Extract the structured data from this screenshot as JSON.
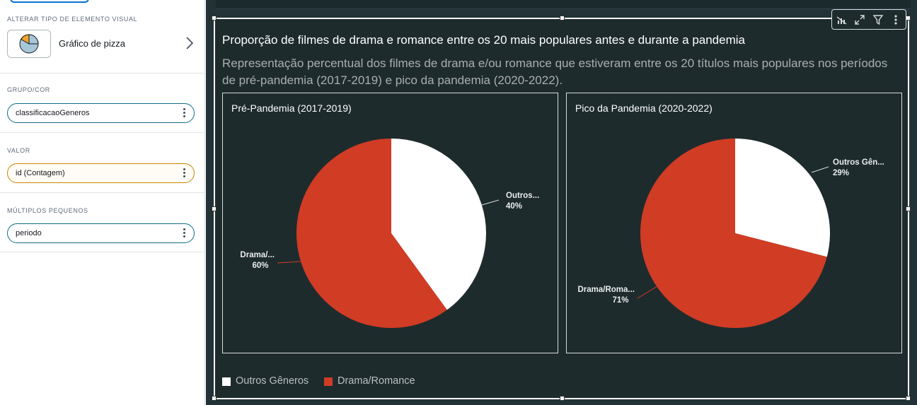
{
  "left_panel": {
    "visual_type_label": "ALTERAR TIPO DE ELEMENTO VISUAL",
    "visual_type_name": "Gráfico de pizza",
    "fields": [
      {
        "section": "GRUPO/COR",
        "value": "classificacaoGeneros"
      },
      {
        "section": "VALOR",
        "value": "id (Contagem)"
      },
      {
        "section": "MÚLTIPLOS PEQUENOS",
        "value": "periodo"
      }
    ]
  },
  "visual": {
    "title": "Proporção de filmes de drama e romance entre os 20 mais populares antes e durante a pandemia",
    "subtitle": "Representação percentual dos filmes de drama e/ou romance que estiveram entre os 20 títulos mais populares nos períodos de pré-pandemia (2017-2019) e pico da pandemia (2020-2022).",
    "toolbar_icons": [
      "chart-insights-icon",
      "expand-icon",
      "filter-icon",
      "more-options-icon"
    ]
  },
  "colors": {
    "outros": "#ffffff",
    "drama": "#d13c25",
    "canvas": "#223236",
    "visual_bg": "#1e2b2d"
  },
  "chart_data": [
    {
      "type": "pie",
      "title": "Pré-Pandemia (2017-2019)",
      "categories": [
        "Outros Gêneros",
        "Drama/Romance"
      ],
      "values": [
        40,
        60
      ],
      "unit": "%",
      "data_labels": [
        {
          "name": "Outros...",
          "value": "40%"
        },
        {
          "name": "Drama/...",
          "value": "60%"
        }
      ]
    },
    {
      "type": "pie",
      "title": "Pico da Pandemia (2020-2022)",
      "categories": [
        "Outros Gêneros",
        "Drama/Romance"
      ],
      "values": [
        29,
        71
      ],
      "unit": "%",
      "data_labels": [
        {
          "name": "Outros Gên...",
          "value": "29%"
        },
        {
          "name": "Drama/Roma...",
          "value": "71%"
        }
      ]
    }
  ],
  "legend": {
    "placement": "bottom-left",
    "items": [
      {
        "label": "Outros Gêneros",
        "color": "#ffffff"
      },
      {
        "label": "Drama/Romance",
        "color": "#d13c25"
      }
    ]
  }
}
